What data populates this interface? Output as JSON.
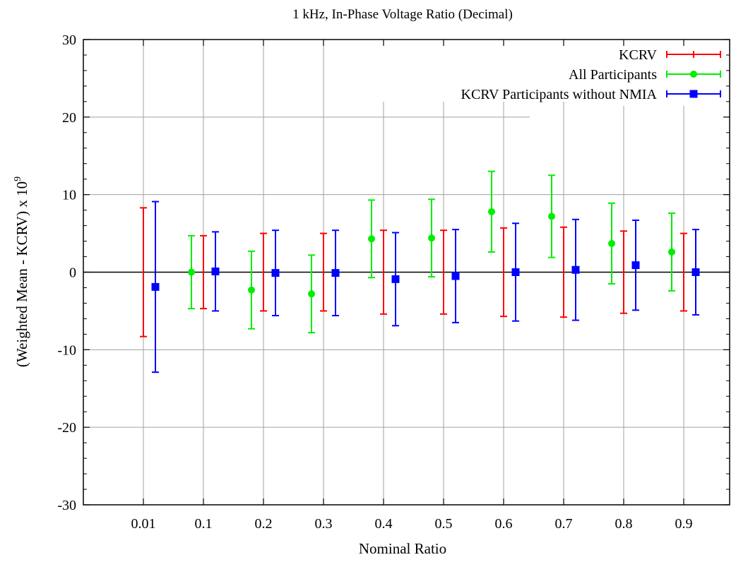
{
  "chart_data": {
    "type": "scatter",
    "title": "1 kHz, In-Phase Voltage Ratio (Decimal)",
    "xlabel": "Nominal Ratio",
    "ylabel_main": "(Weighted Mean - KCRV) x 10",
    "ylabel_exponent": "9",
    "ylim": [
      -30,
      30
    ],
    "yticks": [
      "-30",
      "-20",
      "-10",
      "0",
      "10",
      "20",
      "30"
    ],
    "categories": [
      "0.01",
      "0.1",
      "0.2",
      "0.3",
      "0.4",
      "0.5",
      "0.6",
      "0.7",
      "0.8",
      "0.9"
    ],
    "grid": true,
    "legend_position": "top-right",
    "series": [
      {
        "name": "KCRV",
        "color": "#ff0000",
        "marker": "none",
        "offset": 0,
        "values": [
          0,
          0,
          0,
          0,
          0,
          0,
          0,
          0,
          0,
          0
        ],
        "errors": [
          8.3,
          4.7,
          5.0,
          5.0,
          5.4,
          5.4,
          5.7,
          5.8,
          5.3,
          5.0
        ]
      },
      {
        "name": "All Participants",
        "color": "#00ee00",
        "marker": "circle",
        "offset": -0.2,
        "values": [
          null,
          0.0,
          -2.3,
          -2.8,
          4.3,
          4.4,
          7.8,
          7.2,
          3.7,
          2.6
        ],
        "errors": [
          null,
          4.7,
          5.0,
          5.0,
          5.0,
          5.0,
          5.2,
          5.3,
          5.2,
          5.0
        ]
      },
      {
        "name": "KCRV Participants without NMIA",
        "color": "#0000ff",
        "marker": "square",
        "offset": 0.2,
        "values": [
          -1.9,
          0.1,
          -0.1,
          -0.1,
          -0.9,
          -0.5,
          0.0,
          0.3,
          0.9,
          0.0
        ],
        "errors": [
          11.0,
          5.1,
          5.5,
          5.5,
          6.0,
          6.0,
          6.3,
          6.5,
          5.8,
          5.5
        ]
      }
    ]
  }
}
